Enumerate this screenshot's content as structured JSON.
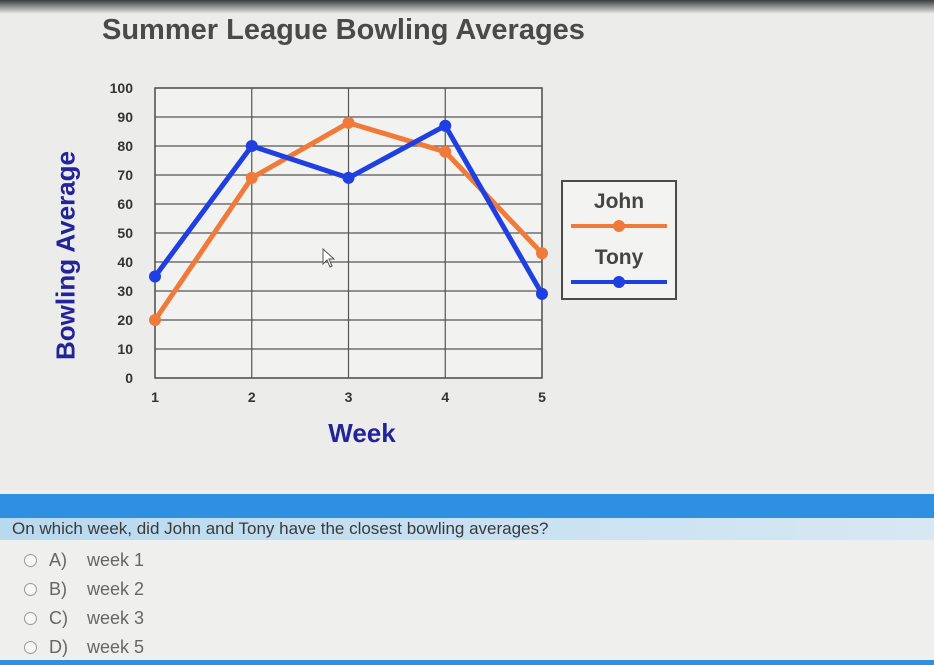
{
  "chart_data": {
    "type": "line",
    "title": "Summer League Bowling Averages",
    "xlabel": "Week",
    "ylabel": "Bowling Average",
    "x": [
      1,
      2,
      3,
      4,
      5
    ],
    "ylim": [
      0,
      100
    ],
    "yticks": [
      0,
      10,
      20,
      30,
      40,
      50,
      60,
      70,
      80,
      90,
      100
    ],
    "grid": true,
    "legend_position": "right",
    "series": [
      {
        "name": "John",
        "color": "#f07a3a",
        "values": [
          20,
          69,
          88,
          78,
          43
        ]
      },
      {
        "name": "Tony",
        "color": "#1f3fe0",
        "values": [
          35,
          80,
          69,
          87,
          29
        ]
      }
    ]
  },
  "question": {
    "text": "On which week, did John and Tony have the closest bowling averages?",
    "options": [
      {
        "letter": "A)",
        "label": "week 1"
      },
      {
        "letter": "B)",
        "label": "week 2"
      },
      {
        "letter": "C)",
        "label": "week 3"
      },
      {
        "letter": "D)",
        "label": "week 5"
      }
    ]
  },
  "colors": {
    "accent_band": "#2f8fe0",
    "axis_label": "#23239a"
  },
  "icons": [
    "mouse-cursor-icon",
    "radio-icon"
  ]
}
